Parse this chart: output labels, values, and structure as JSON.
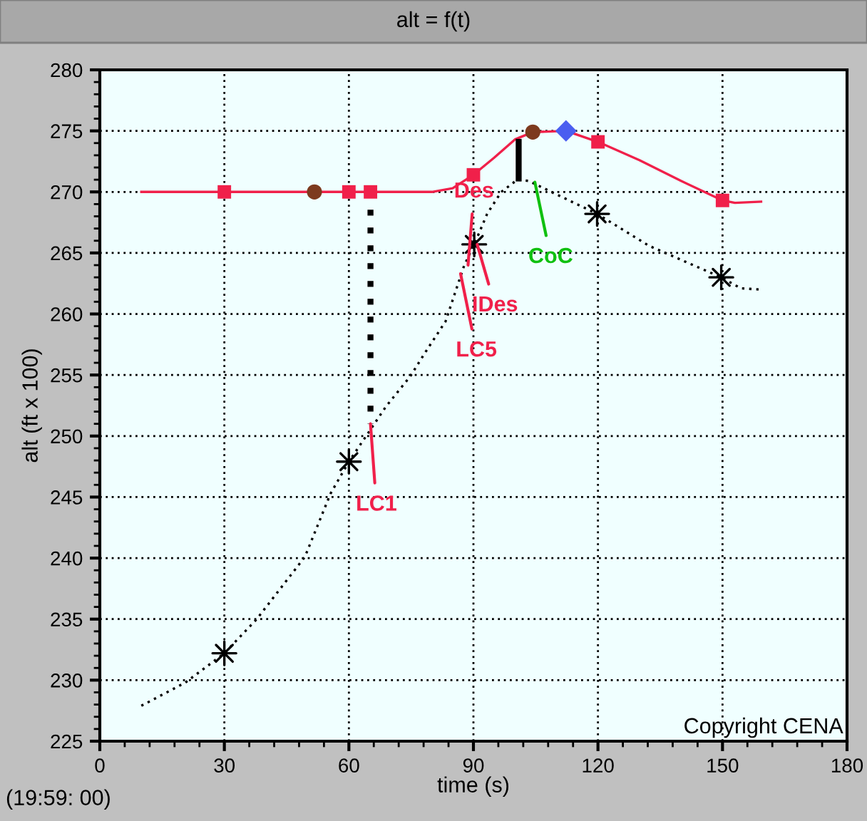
{
  "chart_data": {
    "type": "line",
    "title": "alt = f(t)",
    "xlabel": "time (s)",
    "ylabel": "alt (ft x 100)",
    "xlim": [
      0,
      180
    ],
    "ylim": [
      225,
      280
    ],
    "xticks": [
      0,
      30,
      60,
      90,
      120,
      150,
      180,
      {
        "value": 6,
        "label": null
      },
      {
        "value": 12,
        "label": null
      },
      {
        "value": 18,
        "label": null
      },
      {
        "value": 24,
        "label": null
      },
      {
        "value": 36,
        "label": null
      },
      {
        "value": 42,
        "label": null
      },
      {
        "value": 48,
        "label": null
      },
      {
        "value": 54,
        "label": null
      },
      {
        "value": 66,
        "label": null
      },
      {
        "value": 72,
        "label": null
      },
      {
        "value": 78,
        "label": null
      },
      {
        "value": 84,
        "label": null
      },
      {
        "value": 96,
        "label": null
      },
      {
        "value": 102,
        "label": null
      },
      {
        "value": 108,
        "label": null
      },
      {
        "value": 114,
        "label": null
      },
      {
        "value": 126,
        "label": null
      },
      {
        "value": 132,
        "label": null
      },
      {
        "value": 138,
        "label": null
      },
      {
        "value": 144,
        "label": null
      },
      {
        "value": 156,
        "label": null
      },
      {
        "value": 162,
        "label": null
      },
      {
        "value": 168,
        "label": null
      },
      {
        "value": 174,
        "label": null
      }
    ],
    "yticks": [
      225,
      230,
      235,
      240,
      245,
      250,
      255,
      260,
      265,
      270,
      275,
      280,
      {
        "value": 226,
        "label": null
      },
      {
        "value": 227,
        "label": null
      },
      {
        "value": 228,
        "label": null
      },
      {
        "value": 229,
        "label": null
      },
      {
        "value": 231,
        "label": null
      },
      {
        "value": 232,
        "label": null
      },
      {
        "value": 233,
        "label": null
      },
      {
        "value": 234,
        "label": null
      },
      {
        "value": 236,
        "label": null
      },
      {
        "value": 237,
        "label": null
      },
      {
        "value": 238,
        "label": null
      },
      {
        "value": 239,
        "label": null
      },
      {
        "value": 241,
        "label": null
      },
      {
        "value": 242,
        "label": null
      },
      {
        "value": 243,
        "label": null
      },
      {
        "value": 244,
        "label": null
      },
      {
        "value": 246,
        "label": null
      },
      {
        "value": 247,
        "label": null
      },
      {
        "value": 248,
        "label": null
      },
      {
        "value": 249,
        "label": null
      },
      {
        "value": 251,
        "label": null
      },
      {
        "value": 252,
        "label": null
      },
      {
        "value": 253,
        "label": null
      },
      {
        "value": 254,
        "label": null
      },
      {
        "value": 256,
        "label": null
      },
      {
        "value": 257,
        "label": null
      },
      {
        "value": 258,
        "label": null
      },
      {
        "value": 259,
        "label": null
      },
      {
        "value": 261,
        "label": null
      },
      {
        "value": 262,
        "label": null
      },
      {
        "value": 263,
        "label": null
      },
      {
        "value": 264,
        "label": null
      },
      {
        "value": 266,
        "label": null
      },
      {
        "value": 267,
        "label": null
      },
      {
        "value": 268,
        "label": null
      },
      {
        "value": 269,
        "label": null
      },
      {
        "value": 271,
        "label": null
      },
      {
        "value": 272,
        "label": null
      },
      {
        "value": 273,
        "label": null
      },
      {
        "value": 274,
        "label": null
      },
      {
        "value": 276,
        "label": null
      },
      {
        "value": 277,
        "label": null
      },
      {
        "value": 278,
        "label": null
      },
      {
        "value": 279,
        "label": null
      }
    ],
    "grid": true,
    "legend": false,
    "series": [
      {
        "color": "#f0204a",
        "line_style": "solid",
        "marker": "none",
        "x": [
          10,
          30,
          60,
          80,
          85,
          90,
          95,
          100,
          104.3,
          112.3,
          120,
          130,
          140,
          150,
          153,
          159.3
        ],
        "values": [
          270,
          270,
          270,
          270,
          270.3,
          271.4,
          272.8,
          274.3,
          274.9,
          275,
          274.1,
          272.6,
          270.9,
          269.3,
          269.1,
          269.2
        ]
      },
      {
        "color": "#000000",
        "line_style": "dotted",
        "marker": "none",
        "x": [
          10,
          20.6,
          30,
          37.8,
          49.4,
          55.6,
          60,
          68.9,
          74.8,
          78.3,
          83.3,
          87.8,
          90.2,
          93.3,
          96.7,
          100.6,
          103.3,
          110,
          119.8,
          132.2,
          149.7,
          154.4,
          159.4
        ],
        "values": [
          227.9,
          229.8,
          232.2,
          235.0,
          240.1,
          245.3,
          247.9,
          252.4,
          254.9,
          256.8,
          259.4,
          264.0,
          265.7,
          268.2,
          270.0,
          271.0,
          270.9,
          269.8,
          268.2,
          265.6,
          263.0,
          262.1,
          262.0
        ]
      },
      {
        "color": "#000000",
        "line_style": "dotted",
        "marker": "none",
        "x": [
          65.2,
          65.2
        ],
        "values": [
          270,
          251.0
        ]
      },
      {
        "color": "#000000",
        "line_style": "solid",
        "marker": "none",
        "x": [
          100.9,
          100.9
        ],
        "values": [
          274.1,
          271.1
        ]
      },
      {
        "type": "scatter",
        "color": "#f0204a",
        "marker": "square",
        "x": [
          30,
          60,
          90,
          120,
          150
        ],
        "values": [
          270,
          270,
          271.4,
          274.1,
          269.3
        ]
      },
      {
        "type": "scatter",
        "color": "#f0204a",
        "marker": "square",
        "x": [
          65.2
        ],
        "values": [
          270
        ]
      },
      {
        "type": "scatter",
        "color": "#7d3a1e",
        "marker": "circle",
        "x": [
          51.7,
          104.3
        ],
        "values": [
          270,
          274.9
        ]
      },
      {
        "type": "scatter",
        "color": "#4a5ef0",
        "marker": "diamond",
        "x": [
          112.3
        ],
        "values": [
          275
        ]
      },
      {
        "type": "scatter",
        "color": "#000000",
        "marker": "star",
        "x": [
          30,
          60,
          90.2,
          119.8,
          149.7
        ],
        "values": [
          232.2,
          247.9,
          265.7,
          268.2,
          263.0
        ]
      }
    ],
    "annotations": [
      {
        "text": "LC1",
        "x": 65.2,
        "y": 251.0
      },
      {
        "text": "Des",
        "x": 88.7,
        "y": 264.0
      },
      {
        "text": "IDes",
        "x": 90.9,
        "y": 265.7
      },
      {
        "text": "LC5",
        "x": 86.9,
        "y": 263.3
      },
      {
        "text": "CoC",
        "x": 104.8,
        "y": 270.8
      },
      "(19:59: 00)",
      "Copyright CENA"
    ]
  }
}
